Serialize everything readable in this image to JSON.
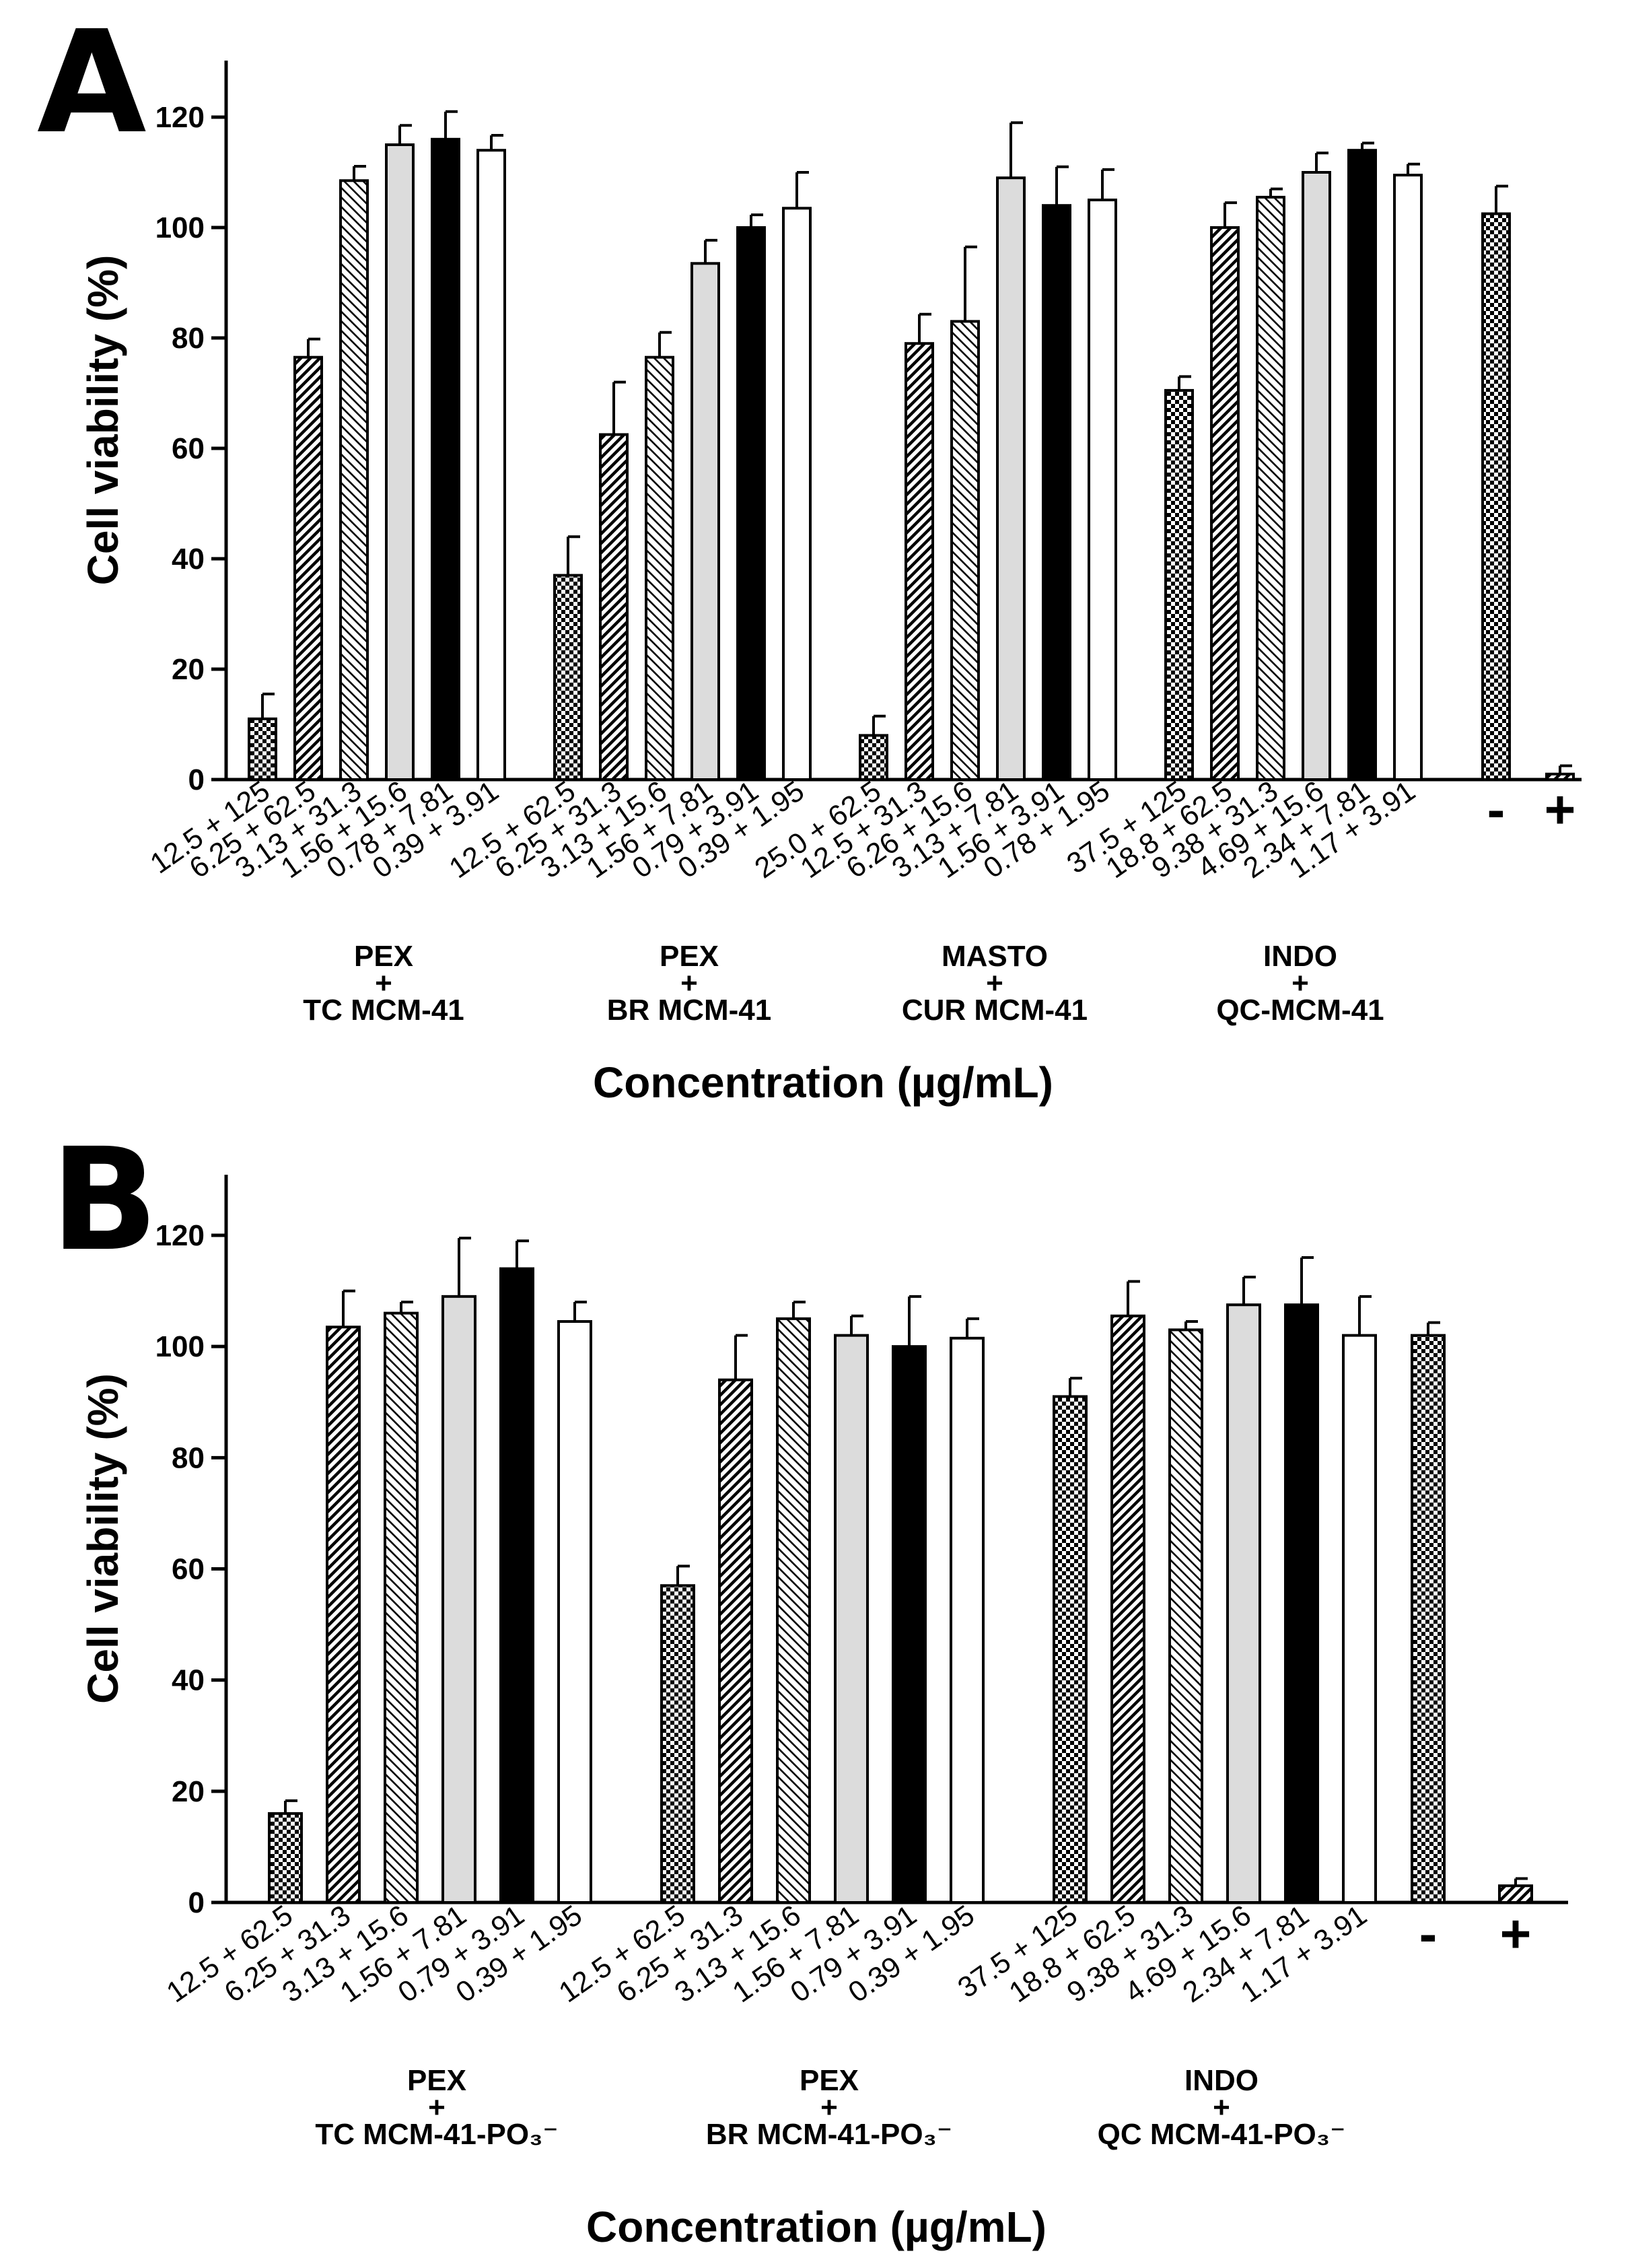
{
  "chart_data": [
    {
      "panel": "A",
      "type": "bar",
      "ylabel": "Cell viability (%)",
      "xlabel": "Concentration (µg/mL)",
      "ylim": [
        0,
        130
      ],
      "yticks": [
        0,
        20,
        40,
        60,
        80,
        100,
        120
      ],
      "groups": [
        {
          "label_lines": [
            "PEX",
            "+",
            "TC MCM-41"
          ],
          "bars": [
            {
              "label": "12.5 + 125",
              "value": 11,
              "error": 4.5,
              "fill": "check"
            },
            {
              "label": "6.25 + 62.5",
              "value": 76.5,
              "error": 3.3,
              "fill": "hatch-dense"
            },
            {
              "label": "3.13 + 31.3",
              "value": 108.5,
              "error": 2.6,
              "fill": "hatch-sparse"
            },
            {
              "label": "1.56 + 15.6",
              "value": 115,
              "error": 3.5,
              "fill": "gray"
            },
            {
              "label": "0.78 + 7.81",
              "value": 116,
              "error": 5,
              "fill": "black"
            },
            {
              "label": "0.39 + 3.91",
              "value": 114,
              "error": 2.7,
              "fill": "white"
            }
          ]
        },
        {
          "label_lines": [
            "PEX",
            "+",
            "BR MCM-41"
          ],
          "bars": [
            {
              "label": "12.5 + 62.5",
              "value": 37,
              "error": 7,
              "fill": "check"
            },
            {
              "label": "6.25 + 31.3",
              "value": 62.5,
              "error": 9.5,
              "fill": "hatch-dense"
            },
            {
              "label": "3.13 + 15.6",
              "value": 76.5,
              "error": 4.5,
              "fill": "hatch-sparse"
            },
            {
              "label": "1.56 + 7.81",
              "value": 93.5,
              "error": 4.2,
              "fill": "gray"
            },
            {
              "label": "0.79 + 3.91",
              "value": 100,
              "error": 2.3,
              "fill": "black"
            },
            {
              "label": "0.39 + 1.95",
              "value": 103.5,
              "error": 6.5,
              "fill": "white"
            }
          ]
        },
        {
          "label_lines": [
            "MASTO",
            "+",
            "CUR MCM-41"
          ],
          "bars": [
            {
              "label": "25.0 + 62.5",
              "value": 8,
              "error": 3.5,
              "fill": "check"
            },
            {
              "label": "12.5 + 31.3",
              "value": 79,
              "error": 5.3,
              "fill": "hatch-dense"
            },
            {
              "label": "6.26 + 15.6",
              "value": 83,
              "error": 13.5,
              "fill": "hatch-sparse"
            },
            {
              "label": "3.13 + 7.81",
              "value": 109,
              "error": 10,
              "fill": "gray"
            },
            {
              "label": "1.56 + 3.91",
              "value": 104,
              "error": 7,
              "fill": "black"
            },
            {
              "label": "0.78 + 1.95",
              "value": 105,
              "error": 5.5,
              "fill": "white"
            }
          ]
        },
        {
          "label_lines": [
            "INDO",
            "+",
            "QC-MCM-41"
          ],
          "bars": [
            {
              "label": "37.5 + 125",
              "value": 70.5,
              "error": 2.5,
              "fill": "check"
            },
            {
              "label": "18.8 + 62.5",
              "value": 100,
              "error": 4.5,
              "fill": "hatch-dense"
            },
            {
              "label": "9.38 + 31.3",
              "value": 105.5,
              "error": 1.5,
              "fill": "hatch-sparse"
            },
            {
              "label": "4.69 + 15.6",
              "value": 110,
              "error": 3.5,
              "fill": "gray"
            },
            {
              "label": "2.34 + 7.81",
              "value": 114,
              "error": 1.3,
              "fill": "black"
            },
            {
              "label": "1.17 + 3.91",
              "value": 109.5,
              "error": 2,
              "fill": "white"
            }
          ]
        },
        {
          "label_lines": [],
          "bars": [
            {
              "label": "-",
              "value": 102.5,
              "error": 5,
              "fill": "check",
              "control": true
            }
          ]
        },
        {
          "label_lines": [],
          "bars": [
            {
              "label": "+",
              "value": 1,
              "error": 1.5,
              "fill": "hatch-dense",
              "control": true
            }
          ]
        }
      ]
    },
    {
      "panel": "B",
      "type": "bar",
      "ylabel": "Cell viability (%)",
      "xlabel": "Concentration (µg/mL)",
      "ylim": [
        0,
        130
      ],
      "yticks": [
        0,
        20,
        40,
        60,
        80,
        100,
        120
      ],
      "groups": [
        {
          "label_lines": [
            "PEX",
            "+",
            "TC MCM-41-PO₃⁻"
          ],
          "bars": [
            {
              "label": "12.5 + 62.5",
              "value": 16,
              "error": 2.3,
              "fill": "check"
            },
            {
              "label": "6.25 + 31.3",
              "value": 103.5,
              "error": 6.5,
              "fill": "hatch-dense"
            },
            {
              "label": "3.13 + 15.6",
              "value": 106,
              "error": 2,
              "fill": "hatch-sparse"
            },
            {
              "label": "1.56 + 7.81",
              "value": 109,
              "error": 10.5,
              "fill": "gray"
            },
            {
              "label": "0.79 + 3.91",
              "value": 114,
              "error": 5,
              "fill": "black"
            },
            {
              "label": "0.39 + 1.95",
              "value": 104.5,
              "error": 3.5,
              "fill": "white"
            }
          ]
        },
        {
          "label_lines": [
            "PEX",
            "+",
            "BR MCM-41-PO₃⁻"
          ],
          "bars": [
            {
              "label": "12.5 + 62.5",
              "value": 57,
              "error": 3.5,
              "fill": "check"
            },
            {
              "label": "6.25 + 31.3",
              "value": 94,
              "error": 8,
              "fill": "hatch-dense"
            },
            {
              "label": "3.13 + 15.6",
              "value": 105,
              "error": 3,
              "fill": "hatch-sparse"
            },
            {
              "label": "1.56 + 7.81",
              "value": 102,
              "error": 3.5,
              "fill": "gray"
            },
            {
              "label": "0.79 + 3.91",
              "value": 100,
              "error": 9,
              "fill": "black"
            },
            {
              "label": "0.39 + 1.95",
              "value": 101.5,
              "error": 3.5,
              "fill": "white"
            }
          ]
        },
        {
          "label_lines": [
            "INDO",
            "+",
            "QC MCM-41-PO₃⁻"
          ],
          "bars": [
            {
              "label": "37.5 + 125",
              "value": 91,
              "error": 3.3,
              "fill": "check"
            },
            {
              "label": "18.8 + 62.5",
              "value": 105.5,
              "error": 6.2,
              "fill": "hatch-dense"
            },
            {
              "label": "9.38 + 31.3",
              "value": 103,
              "error": 1.5,
              "fill": "hatch-sparse"
            },
            {
              "label": "4.69 + 15.6",
              "value": 107.5,
              "error": 5,
              "fill": "gray"
            },
            {
              "label": "2.34 + 7.81",
              "value": 107.5,
              "error": 8.5,
              "fill": "black"
            },
            {
              "label": "1.17 + 3.91",
              "value": 102,
              "error": 7,
              "fill": "white"
            }
          ]
        },
        {
          "label_lines": [],
          "bars": [
            {
              "label": "-",
              "value": 102,
              "error": 2.3,
              "fill": "check",
              "control": true
            }
          ]
        },
        {
          "label_lines": [],
          "bars": [
            {
              "label": "+",
              "value": 3,
              "error": 1.3,
              "fill": "hatch-dense",
              "control": true
            }
          ]
        }
      ]
    }
  ]
}
